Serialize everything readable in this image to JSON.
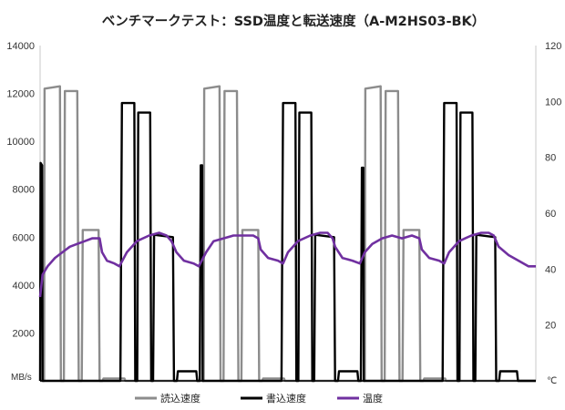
{
  "chart_data": {
    "type": "line",
    "title": "ベンチマークテスト：SSD温度と転送速度（A-M2HS03-BK）",
    "y_left": {
      "unit_label": "MB/s",
      "range": [
        0,
        14000
      ],
      "ticks": [
        "0",
        "2000",
        "4000",
        "6000",
        "8000",
        "10000",
        "12000",
        "14000"
      ]
    },
    "y_right": {
      "unit_label": "℃",
      "range": [
        0,
        120
      ],
      "ticks": [
        "0",
        "20",
        "40",
        "60",
        "80",
        "100",
        "120"
      ]
    },
    "grid": false,
    "legend_position": "bottom",
    "x_range": [
      0,
      1000
    ],
    "series": [
      {
        "name": "読込速度",
        "axis": "left",
        "color": "#8c8c8c",
        "points": [
          [
            0,
            0
          ],
          [
            8,
            0
          ],
          [
            9,
            12200
          ],
          [
            40,
            12300
          ],
          [
            42,
            0
          ],
          [
            48,
            0
          ],
          [
            50,
            12100
          ],
          [
            75,
            12100
          ],
          [
            78,
            0
          ],
          [
            84,
            0
          ],
          [
            86,
            6300
          ],
          [
            118,
            6300
          ],
          [
            120,
            0
          ],
          [
            126,
            0
          ],
          [
            128,
            100
          ],
          [
            170,
            100
          ],
          [
            172,
            0
          ],
          [
            330,
            0
          ],
          [
            331,
            12200
          ],
          [
            362,
            12300
          ],
          [
            364,
            0
          ],
          [
            370,
            0
          ],
          [
            372,
            12100
          ],
          [
            397,
            12100
          ],
          [
            400,
            0
          ],
          [
            406,
            0
          ],
          [
            408,
            6300
          ],
          [
            440,
            6300
          ],
          [
            442,
            0
          ],
          [
            448,
            0
          ],
          [
            450,
            100
          ],
          [
            492,
            100
          ],
          [
            494,
            0
          ],
          [
            655,
            0
          ],
          [
            656,
            12200
          ],
          [
            687,
            12300
          ],
          [
            689,
            0
          ],
          [
            695,
            0
          ],
          [
            697,
            12100
          ],
          [
            722,
            12100
          ],
          [
            725,
            0
          ],
          [
            731,
            0
          ],
          [
            733,
            6300
          ],
          [
            765,
            6300
          ],
          [
            767,
            0
          ],
          [
            773,
            0
          ],
          [
            775,
            100
          ],
          [
            817,
            100
          ],
          [
            819,
            0
          ],
          [
            1000,
            0
          ]
        ]
      },
      {
        "name": "書込速度",
        "axis": "left",
        "color": "#000000",
        "points": [
          [
            0,
            0
          ],
          [
            1,
            9100
          ],
          [
            4,
            9000
          ],
          [
            5,
            0
          ],
          [
            160,
            0
          ],
          [
            162,
            0
          ],
          [
            165,
            11600
          ],
          [
            190,
            11600
          ],
          [
            192,
            0
          ],
          [
            196,
            0
          ],
          [
            198,
            11200
          ],
          [
            222,
            11200
          ],
          [
            224,
            0
          ],
          [
            228,
            0
          ],
          [
            230,
            6100
          ],
          [
            268,
            6000
          ],
          [
            270,
            0
          ],
          [
            276,
            0
          ],
          [
            278,
            400
          ],
          [
            315,
            400
          ],
          [
            317,
            0
          ],
          [
            322,
            0
          ],
          [
            324,
            9000
          ],
          [
            327,
            9000
          ],
          [
            328,
            0
          ],
          [
            485,
            0
          ],
          [
            487,
            0
          ],
          [
            490,
            11600
          ],
          [
            515,
            11600
          ],
          [
            517,
            0
          ],
          [
            521,
            0
          ],
          [
            523,
            11200
          ],
          [
            547,
            11200
          ],
          [
            549,
            0
          ],
          [
            553,
            0
          ],
          [
            555,
            6100
          ],
          [
            593,
            6000
          ],
          [
            595,
            0
          ],
          [
            601,
            0
          ],
          [
            603,
            400
          ],
          [
            640,
            400
          ],
          [
            642,
            0
          ],
          [
            647,
            0
          ],
          [
            649,
            8900
          ],
          [
            652,
            8900
          ],
          [
            653,
            0
          ],
          [
            810,
            0
          ],
          [
            812,
            0
          ],
          [
            815,
            11600
          ],
          [
            840,
            11600
          ],
          [
            842,
            0
          ],
          [
            846,
            0
          ],
          [
            848,
            11200
          ],
          [
            872,
            11200
          ],
          [
            874,
            0
          ],
          [
            878,
            0
          ],
          [
            880,
            6100
          ],
          [
            918,
            6000
          ],
          [
            920,
            0
          ],
          [
            926,
            0
          ],
          [
            928,
            400
          ],
          [
            962,
            400
          ],
          [
            964,
            0
          ],
          [
            1000,
            0
          ]
        ]
      },
      {
        "name": "温度",
        "axis": "right",
        "color": "#7030a0",
        "points": [
          [
            0,
            30
          ],
          [
            5,
            38
          ],
          [
            15,
            41
          ],
          [
            30,
            44
          ],
          [
            45,
            46
          ],
          [
            60,
            48
          ],
          [
            75,
            49
          ],
          [
            90,
            50
          ],
          [
            105,
            51
          ],
          [
            120,
            51
          ],
          [
            125,
            46
          ],
          [
            135,
            43
          ],
          [
            150,
            42
          ],
          [
            160,
            41
          ],
          [
            175,
            46
          ],
          [
            195,
            50
          ],
          [
            220,
            52
          ],
          [
            240,
            53
          ],
          [
            255,
            52
          ],
          [
            265,
            50
          ],
          [
            275,
            46
          ],
          [
            290,
            43
          ],
          [
            310,
            42
          ],
          [
            320,
            41
          ],
          [
            335,
            46
          ],
          [
            350,
            50
          ],
          [
            370,
            51
          ],
          [
            390,
            52
          ],
          [
            410,
            52
          ],
          [
            430,
            52
          ],
          [
            440,
            51
          ],
          [
            445,
            47
          ],
          [
            460,
            44
          ],
          [
            480,
            43
          ],
          [
            490,
            42
          ],
          [
            500,
            46
          ],
          [
            520,
            50
          ],
          [
            545,
            52
          ],
          [
            565,
            53
          ],
          [
            580,
            53
          ],
          [
            590,
            51
          ],
          [
            595,
            48
          ],
          [
            610,
            44
          ],
          [
            630,
            43
          ],
          [
            645,
            42
          ],
          [
            655,
            46
          ],
          [
            670,
            49
          ],
          [
            690,
            51
          ],
          [
            710,
            52
          ],
          [
            730,
            51
          ],
          [
            750,
            52
          ],
          [
            765,
            51
          ],
          [
            770,
            47
          ],
          [
            785,
            44
          ],
          [
            805,
            43
          ],
          [
            815,
            42
          ],
          [
            825,
            46
          ],
          [
            845,
            50
          ],
          [
            870,
            52
          ],
          [
            890,
            53
          ],
          [
            905,
            53
          ],
          [
            915,
            52
          ],
          [
            925,
            48
          ],
          [
            945,
            45
          ],
          [
            965,
            43
          ],
          [
            985,
            41
          ],
          [
            1000,
            41
          ]
        ]
      }
    ]
  }
}
